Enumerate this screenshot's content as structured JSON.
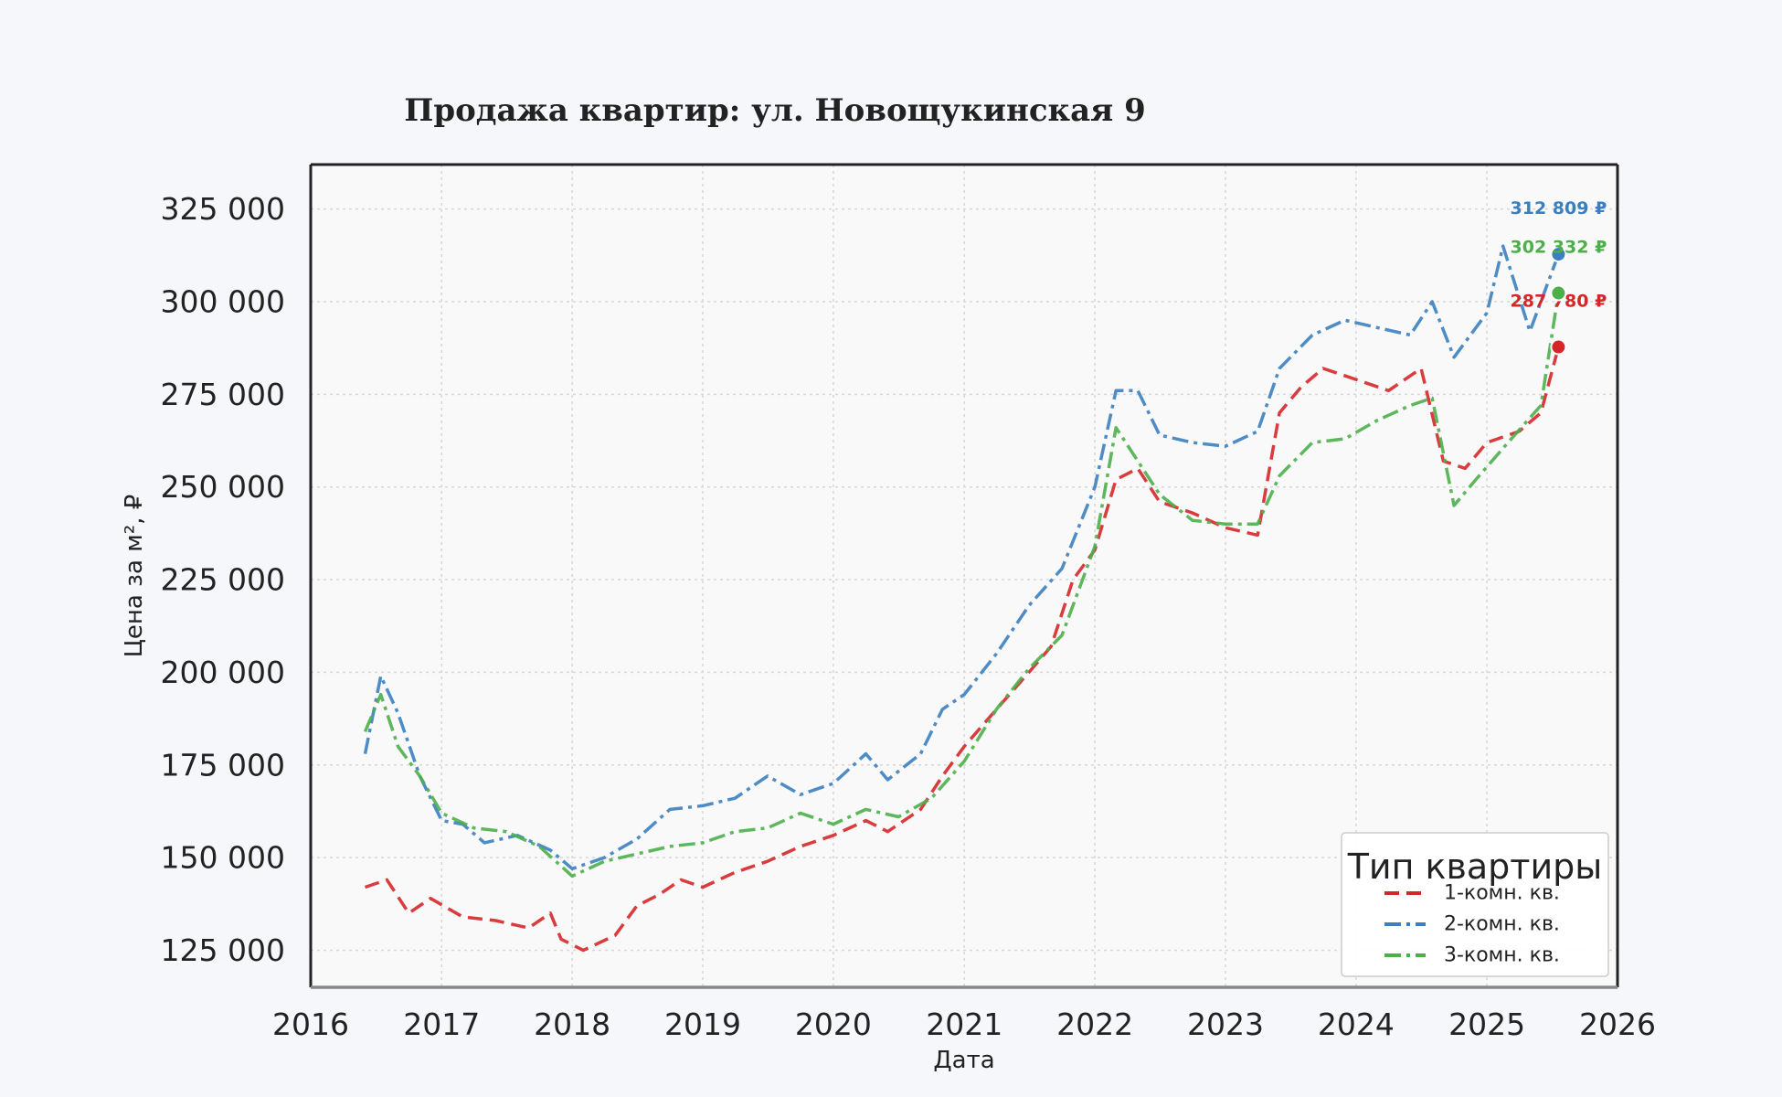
{
  "chart_data": {
    "type": "line",
    "title": "Продажа квартир: ул. Новощукинская 9",
    "xlabel": "Дата",
    "ylabel": "Цена за м², ₽",
    "xlim": [
      "2016-01-01",
      "2026-01-01"
    ],
    "ylim": [
      115000,
      337000
    ],
    "x_ticks": [
      "2016",
      "2017",
      "2018",
      "2019",
      "2020",
      "2021",
      "2022",
      "2023",
      "2024",
      "2025",
      "2026"
    ],
    "y_ticks": [
      "125 000",
      "150 000",
      "175 000",
      "200 000",
      "225 000",
      "250 000",
      "275 000",
      "300 000",
      "325 000"
    ],
    "grid": true,
    "legend": {
      "title": "Тип квартиры",
      "placement": "bottom-right"
    },
    "series": [
      {
        "name": "1-комн. кв.",
        "color": "#d62728",
        "dash": "dashed",
        "end_label": "287 780 ₽",
        "end_value": 287780,
        "points": [
          [
            "2016-06-01",
            142000
          ],
          [
            "2016-08-01",
            144000
          ],
          [
            "2016-10-01",
            135000
          ],
          [
            "2016-12-01",
            139000
          ],
          [
            "2017-03-01",
            134000
          ],
          [
            "2017-06-01",
            133000
          ],
          [
            "2017-09-01",
            131000
          ],
          [
            "2017-11-01",
            135000
          ],
          [
            "2017-12-01",
            128000
          ],
          [
            "2018-02-01",
            125000
          ],
          [
            "2018-05-01",
            129000
          ],
          [
            "2018-07-01",
            137000
          ],
          [
            "2018-09-01",
            140000
          ],
          [
            "2018-11-01",
            144000
          ],
          [
            "2019-01-01",
            142000
          ],
          [
            "2019-04-01",
            146000
          ],
          [
            "2019-07-01",
            149000
          ],
          [
            "2019-10-01",
            153000
          ],
          [
            "2020-01-01",
            156000
          ],
          [
            "2020-04-01",
            160000
          ],
          [
            "2020-06-01",
            157000
          ],
          [
            "2020-09-01",
            163000
          ],
          [
            "2020-11-01",
            172000
          ],
          [
            "2021-01-01",
            180000
          ],
          [
            "2021-04-01",
            190000
          ],
          [
            "2021-07-01",
            200000
          ],
          [
            "2021-09-01",
            207000
          ],
          [
            "2021-11-01",
            225000
          ],
          [
            "2022-01-01",
            233000
          ],
          [
            "2022-03-01",
            252000
          ],
          [
            "2022-05-01",
            255000
          ],
          [
            "2022-07-01",
            246000
          ],
          [
            "2022-10-01",
            243000
          ],
          [
            "2023-01-01",
            239000
          ],
          [
            "2023-04-01",
            237000
          ],
          [
            "2023-06-01",
            270000
          ],
          [
            "2023-08-01",
            277000
          ],
          [
            "2023-10-01",
            282000
          ],
          [
            "2024-01-01",
            279000
          ],
          [
            "2024-04-01",
            276000
          ],
          [
            "2024-07-01",
            282000
          ],
          [
            "2024-09-01",
            257000
          ],
          [
            "2024-11-01",
            255000
          ],
          [
            "2025-01-01",
            262000
          ],
          [
            "2025-04-01",
            265000
          ],
          [
            "2025-06-01",
            270000
          ],
          [
            "2025-07-20",
            287780
          ]
        ]
      },
      {
        "name": "2-комн. кв.",
        "color": "#3a7fbf",
        "dash": "dashdot",
        "end_label": "312 809 ₽",
        "end_value": 312809,
        "points": [
          [
            "2016-06-01",
            178000
          ],
          [
            "2016-07-15",
            199000
          ],
          [
            "2016-09-01",
            189000
          ],
          [
            "2016-11-01",
            172000
          ],
          [
            "2017-01-01",
            160000
          ],
          [
            "2017-03-01",
            159000
          ],
          [
            "2017-05-01",
            154000
          ],
          [
            "2017-08-01",
            156000
          ],
          [
            "2017-11-01",
            152000
          ],
          [
            "2018-01-01",
            147000
          ],
          [
            "2018-04-01",
            150000
          ],
          [
            "2018-07-01",
            155000
          ],
          [
            "2018-10-01",
            163000
          ],
          [
            "2019-01-01",
            164000
          ],
          [
            "2019-04-01",
            166000
          ],
          [
            "2019-07-01",
            172000
          ],
          [
            "2019-10-01",
            167000
          ],
          [
            "2020-01-01",
            170000
          ],
          [
            "2020-04-01",
            178000
          ],
          [
            "2020-06-01",
            171000
          ],
          [
            "2020-09-01",
            178000
          ],
          [
            "2020-11-01",
            190000
          ],
          [
            "2021-01-01",
            194000
          ],
          [
            "2021-04-01",
            205000
          ],
          [
            "2021-07-01",
            218000
          ],
          [
            "2021-10-01",
            228000
          ],
          [
            "2022-01-01",
            250000
          ],
          [
            "2022-03-01",
            276000
          ],
          [
            "2022-05-01",
            276000
          ],
          [
            "2022-07-01",
            264000
          ],
          [
            "2022-10-01",
            262000
          ],
          [
            "2023-01-01",
            261000
          ],
          [
            "2023-04-01",
            265000
          ],
          [
            "2023-06-01",
            282000
          ],
          [
            "2023-09-01",
            291000
          ],
          [
            "2023-12-01",
            295000
          ],
          [
            "2024-03-01",
            293000
          ],
          [
            "2024-06-01",
            291000
          ],
          [
            "2024-08-01",
            300000
          ],
          [
            "2024-10-01",
            285000
          ],
          [
            "2025-01-01",
            297000
          ],
          [
            "2025-02-15",
            315000
          ],
          [
            "2025-05-01",
            292000
          ],
          [
            "2025-07-20",
            312809
          ]
        ]
      },
      {
        "name": "3-комн. кв.",
        "color": "#4daf4a",
        "dash": "dashdot",
        "end_label": "302 332 ₽",
        "end_value": 302332,
        "points": [
          [
            "2016-06-01",
            184000
          ],
          [
            "2016-07-15",
            194000
          ],
          [
            "2016-09-01",
            180000
          ],
          [
            "2016-11-01",
            172000
          ],
          [
            "2017-01-01",
            162000
          ],
          [
            "2017-04-01",
            158000
          ],
          [
            "2017-07-01",
            157000
          ],
          [
            "2017-10-01",
            153000
          ],
          [
            "2018-01-01",
            145000
          ],
          [
            "2018-04-01",
            149000
          ],
          [
            "2018-07-01",
            151000
          ],
          [
            "2018-10-01",
            153000
          ],
          [
            "2019-01-01",
            154000
          ],
          [
            "2019-04-01",
            157000
          ],
          [
            "2019-07-01",
            158000
          ],
          [
            "2019-10-01",
            162000
          ],
          [
            "2020-01-01",
            159000
          ],
          [
            "2020-04-01",
            163000
          ],
          [
            "2020-07-01",
            161000
          ],
          [
            "2020-10-01",
            166000
          ],
          [
            "2021-01-01",
            176000
          ],
          [
            "2021-04-01",
            190000
          ],
          [
            "2021-07-01",
            201000
          ],
          [
            "2021-10-01",
            210000
          ],
          [
            "2022-01-01",
            234000
          ],
          [
            "2022-03-01",
            266000
          ],
          [
            "2022-05-01",
            257000
          ],
          [
            "2022-07-01",
            248000
          ],
          [
            "2022-10-01",
            241000
          ],
          [
            "2023-01-01",
            240000
          ],
          [
            "2023-04-01",
            240000
          ],
          [
            "2023-06-01",
            253000
          ],
          [
            "2023-09-01",
            262000
          ],
          [
            "2023-12-01",
            263000
          ],
          [
            "2024-03-01",
            268000
          ],
          [
            "2024-06-01",
            272000
          ],
          [
            "2024-08-01",
            274000
          ],
          [
            "2024-10-01",
            245000
          ],
          [
            "2024-12-01",
            252000
          ],
          [
            "2025-03-01",
            262000
          ],
          [
            "2025-06-01",
            272000
          ],
          [
            "2025-07-20",
            302332
          ]
        ]
      }
    ]
  }
}
